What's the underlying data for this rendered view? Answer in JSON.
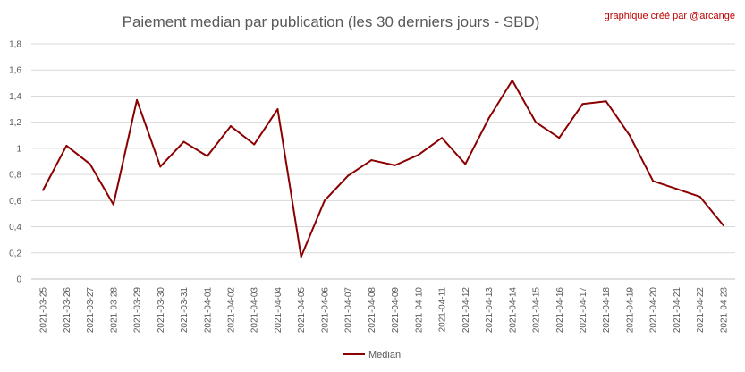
{
  "chart_data": {
    "type": "line",
    "title": "Paiement median par publication (les 30 derniers jours - SBD)",
    "credit": "graphique créé par @arcange",
    "x": [
      "2021-03-25",
      "2021-03-26",
      "2021-03-27",
      "2021-03-28",
      "2021-03-29",
      "2021-03-30",
      "2021-03-31",
      "2021-04-01",
      "2021-04-02",
      "2021-04-03",
      "2021-04-04",
      "2021-04-05",
      "2021-04-06",
      "2021-04-07",
      "2021-04-08",
      "2021-04-09",
      "2021-04-10",
      "2021-04-11",
      "2021-04-12",
      "2021-04-13",
      "2021-04-14",
      "2021-04-15",
      "2021-04-16",
      "2021-04-17",
      "2021-04-18",
      "2021-04-19",
      "2021-04-20",
      "2021-04-21",
      "2021-04-22",
      "2021-04-23"
    ],
    "series": [
      {
        "name": "Median",
        "color": "#8b0000",
        "values": [
          0.68,
          1.02,
          0.88,
          0.57,
          1.37,
          0.86,
          1.05,
          0.94,
          1.17,
          1.03,
          1.3,
          0.17,
          0.6,
          0.79,
          0.91,
          0.87,
          0.95,
          1.08,
          0.88,
          1.23,
          1.52,
          1.2,
          1.08,
          1.34,
          1.36,
          1.1,
          0.75,
          0.69,
          0.63,
          0.41
        ]
      }
    ],
    "ylim": [
      0,
      1.8
    ],
    "yticks": [
      "0",
      "0,2",
      "0,4",
      "0,6",
      "0,8",
      "1",
      "1,2",
      "1,4",
      "1,6",
      "1,8"
    ],
    "ytick_values": [
      0,
      0.2,
      0.4,
      0.6,
      0.8,
      1.0,
      1.2,
      1.4,
      1.6,
      1.8
    ],
    "grid": true,
    "legend": "bottom-center"
  }
}
